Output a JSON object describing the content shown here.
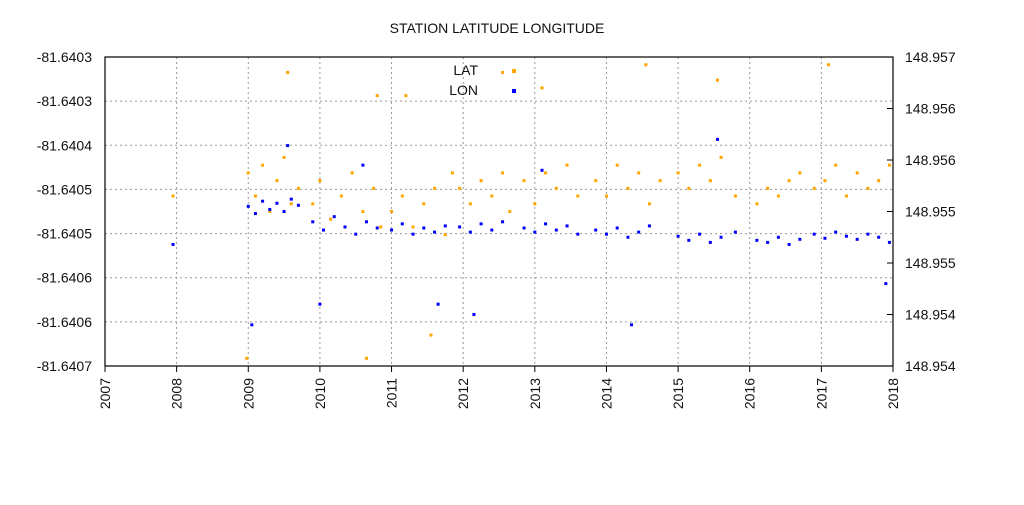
{
  "chart_data": {
    "type": "scatter",
    "title": "STATION LATITUDE LONGITUDE",
    "xlabel": "",
    "ylabel": "",
    "xlim": [
      2007,
      2018
    ],
    "x_tick_labels": [
      "2007",
      "2008",
      "2009",
      "2010",
      "2011",
      "2012",
      "2013",
      "2014",
      "2015",
      "2016",
      "2017",
      "2018"
    ],
    "ylim_left": [
      -81.6407,
      -81.6403
    ],
    "y_left_tick_labels": [
      "-81.6403",
      "-81.6403",
      "-81.6404",
      "-81.6405",
      "-81.6405",
      "-81.6406",
      "-81.6406",
      "-81.6407"
    ],
    "y_left_tick_labels_top_down": [
      "-81.6403",
      "-81.6403",
      "-81.6404",
      "-81.6405",
      "-81.6405",
      "-81.6406",
      "-81.6406",
      "-81.6407"
    ],
    "ylim_right": [
      148.9538,
      148.9568
    ],
    "y_right_tick_labels_top_down": [
      "148.957",
      "148.956",
      "148.956",
      "148.955",
      "148.955",
      "148.954",
      "148.954"
    ],
    "grid": true,
    "legend_position": "top-center",
    "series": [
      {
        "name": "LAT",
        "axis": "left",
        "color": "#FFA500",
        "points": [
          [
            2007.95,
            -81.64048
          ],
          [
            2008.98,
            -81.64069
          ],
          [
            2009.0,
            -81.64045
          ],
          [
            2009.1,
            -81.64048
          ],
          [
            2009.2,
            -81.64044
          ],
          [
            2009.3,
            -81.6405
          ],
          [
            2009.4,
            -81.64046
          ],
          [
            2009.5,
            -81.64043
          ],
          [
            2009.55,
            -81.64032
          ],
          [
            2009.6,
            -81.64049
          ],
          [
            2009.7,
            -81.64047
          ],
          [
            2009.9,
            -81.64049
          ],
          [
            2010.0,
            -81.64046
          ],
          [
            2010.15,
            -81.64051
          ],
          [
            2010.3,
            -81.64048
          ],
          [
            2010.45,
            -81.64045
          ],
          [
            2010.6,
            -81.6405
          ],
          [
            2010.65,
            -81.64069
          ],
          [
            2010.75,
            -81.64047
          ],
          [
            2010.8,
            -81.64035
          ],
          [
            2010.85,
            -81.64052
          ],
          [
            2011.0,
            -81.6405
          ],
          [
            2011.15,
            -81.64048
          ],
          [
            2011.2,
            -81.64035
          ],
          [
            2011.3,
            -81.64052
          ],
          [
            2011.45,
            -81.64049
          ],
          [
            2011.55,
            -81.64066
          ],
          [
            2011.6,
            -81.64047
          ],
          [
            2011.75,
            -81.64053
          ],
          [
            2011.85,
            -81.64045
          ],
          [
            2011.95,
            -81.64047
          ],
          [
            2012.1,
            -81.64049
          ],
          [
            2012.25,
            -81.64046
          ],
          [
            2012.4,
            -81.64048
          ],
          [
            2012.55,
            -81.64045
          ],
          [
            2012.55,
            -81.64032
          ],
          [
            2012.65,
            -81.6405
          ],
          [
            2012.85,
            -81.64046
          ],
          [
            2013.0,
            -81.64049
          ],
          [
            2013.1,
            -81.64034
          ],
          [
            2013.15,
            -81.64045
          ],
          [
            2013.3,
            -81.64047
          ],
          [
            2013.45,
            -81.64044
          ],
          [
            2013.6,
            -81.64048
          ],
          [
            2013.85,
            -81.64046
          ],
          [
            2014.0,
            -81.64048
          ],
          [
            2014.15,
            -81.64044
          ],
          [
            2014.3,
            -81.64047
          ],
          [
            2014.45,
            -81.64045
          ],
          [
            2014.55,
            -81.64031
          ],
          [
            2014.6,
            -81.64049
          ],
          [
            2014.75,
            -81.64046
          ],
          [
            2015.0,
            -81.64045
          ],
          [
            2015.15,
            -81.64047
          ],
          [
            2015.3,
            -81.64044
          ],
          [
            2015.45,
            -81.64046
          ],
          [
            2015.55,
            -81.64033
          ],
          [
            2015.6,
            -81.64043
          ],
          [
            2015.8,
            -81.64048
          ],
          [
            2016.1,
            -81.64049
          ],
          [
            2016.25,
            -81.64047
          ],
          [
            2016.4,
            -81.64048
          ],
          [
            2016.55,
            -81.64046
          ],
          [
            2016.7,
            -81.64045
          ],
          [
            2016.9,
            -81.64047
          ],
          [
            2017.05,
            -81.64046
          ],
          [
            2017.1,
            -81.64031
          ],
          [
            2017.2,
            -81.64044
          ],
          [
            2017.35,
            -81.64048
          ],
          [
            2017.5,
            -81.64045
          ],
          [
            2017.65,
            -81.64047
          ],
          [
            2017.8,
            -81.64046
          ],
          [
            2017.95,
            -81.64044
          ]
        ]
      },
      {
        "name": "LON",
        "axis": "right",
        "color": "#0000FF",
        "points": [
          [
            2007.95,
            148.95498
          ],
          [
            2009.0,
            148.95535
          ],
          [
            2009.05,
            148.9542
          ],
          [
            2009.1,
            148.95528
          ],
          [
            2009.2,
            148.9554
          ],
          [
            2009.3,
            148.95532
          ],
          [
            2009.4,
            148.95538
          ],
          [
            2009.5,
            148.9553
          ],
          [
            2009.55,
            148.95594
          ],
          [
            2009.6,
            148.95542
          ],
          [
            2009.7,
            148.95536
          ],
          [
            2009.9,
            148.9552
          ],
          [
            2010.0,
            148.9544
          ],
          [
            2010.05,
            148.95512
          ],
          [
            2010.2,
            148.95525
          ],
          [
            2010.35,
            148.95515
          ],
          [
            2010.5,
            148.95508
          ],
          [
            2010.6,
            148.95575
          ],
          [
            2010.65,
            148.9552
          ],
          [
            2010.8,
            148.95514
          ],
          [
            2011.0,
            148.95512
          ],
          [
            2011.15,
            148.95518
          ],
          [
            2011.3,
            148.95508
          ],
          [
            2011.45,
            148.95514
          ],
          [
            2011.6,
            148.9551
          ],
          [
            2011.65,
            148.9544
          ],
          [
            2011.75,
            148.95516
          ],
          [
            2011.95,
            148.95515
          ],
          [
            2012.1,
            148.9551
          ],
          [
            2012.15,
            148.9543
          ],
          [
            2012.25,
            148.95518
          ],
          [
            2012.4,
            148.95512
          ],
          [
            2012.55,
            148.9552
          ],
          [
            2012.85,
            148.95514
          ],
          [
            2013.0,
            148.9551
          ],
          [
            2013.1,
            148.9557
          ],
          [
            2013.15,
            148.95518
          ],
          [
            2013.3,
            148.95512
          ],
          [
            2013.45,
            148.95516
          ],
          [
            2013.6,
            148.95508
          ],
          [
            2013.85,
            148.95512
          ],
          [
            2014.0,
            148.95508
          ],
          [
            2014.15,
            148.95514
          ],
          [
            2014.3,
            148.95505
          ],
          [
            2014.35,
            148.9542
          ],
          [
            2014.45,
            148.9551
          ],
          [
            2014.6,
            148.95516
          ],
          [
            2015.0,
            148.95506
          ],
          [
            2015.15,
            148.95502
          ],
          [
            2015.3,
            148.95508
          ],
          [
            2015.45,
            148.955
          ],
          [
            2015.55,
            148.956
          ],
          [
            2015.6,
            148.95505
          ],
          [
            2015.8,
            148.9551
          ],
          [
            2016.1,
            148.95502
          ],
          [
            2016.25,
            148.955
          ],
          [
            2016.4,
            148.95505
          ],
          [
            2016.55,
            148.95498
          ],
          [
            2016.7,
            148.95503
          ],
          [
            2016.9,
            148.95508
          ],
          [
            2017.05,
            148.95504
          ],
          [
            2017.2,
            148.9551
          ],
          [
            2017.35,
            148.95506
          ],
          [
            2017.5,
            148.95503
          ],
          [
            2017.65,
            148.95508
          ],
          [
            2017.8,
            148.95505
          ],
          [
            2017.9,
            148.9546
          ],
          [
            2017.95,
            148.955
          ]
        ]
      }
    ]
  }
}
